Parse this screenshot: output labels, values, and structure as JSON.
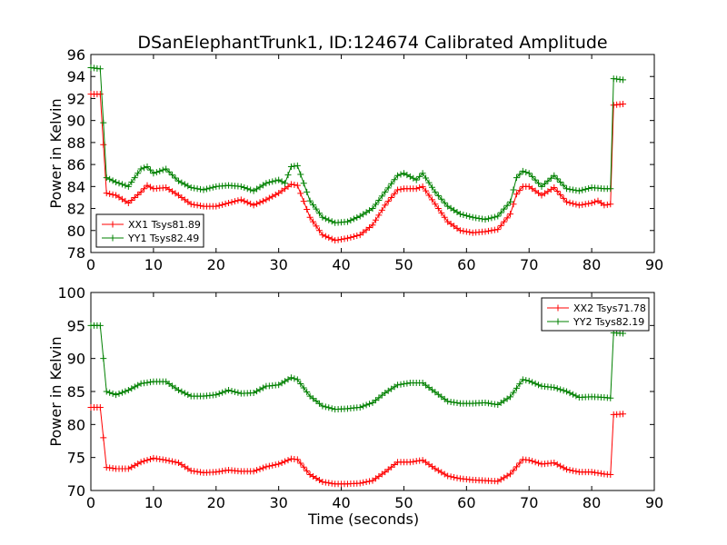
{
  "title": "DSanElephantTrunk1, ID:124674 Calibrated Amplitude",
  "chart_data": [
    {
      "type": "line",
      "xlabel": "",
      "ylabel": "Power in Kelvin",
      "xlim": [
        0,
        90
      ],
      "ylim": [
        78,
        96
      ],
      "xticks": [
        0,
        10,
        20,
        30,
        40,
        50,
        60,
        70,
        80,
        90
      ],
      "yticks": [
        78,
        80,
        82,
        84,
        86,
        88,
        90,
        92,
        94,
        96
      ],
      "legend_position": "lower-left",
      "series": [
        {
          "name": "XX1 Tsys81.89",
          "color": "#ff0000",
          "marker": "+",
          "points": [
            [
              0,
              92.4
            ],
            [
              1.5,
              92.4
            ],
            [
              2,
              87.8
            ],
            [
              2.5,
              83.4
            ],
            [
              4,
              83.2
            ],
            [
              6,
              82.5
            ],
            [
              8,
              83.5
            ],
            [
              9,
              84.1
            ],
            [
              10,
              83.8
            ],
            [
              12,
              83.9
            ],
            [
              14,
              83.2
            ],
            [
              16,
              82.4
            ],
            [
              18,
              82.2
            ],
            [
              20,
              82.2
            ],
            [
              22,
              82.5
            ],
            [
              24,
              82.8
            ],
            [
              26,
              82.3
            ],
            [
              28,
              82.8
            ],
            [
              30,
              83.4
            ],
            [
              32,
              84.2
            ],
            [
              33,
              84.1
            ],
            [
              35,
              81.2
            ],
            [
              37,
              79.6
            ],
            [
              39,
              79.1
            ],
            [
              41,
              79.3
            ],
            [
              43,
              79.6
            ],
            [
              45,
              80.5
            ],
            [
              47,
              82.3
            ],
            [
              49,
              83.7
            ],
            [
              50,
              83.8
            ],
            [
              52,
              83.8
            ],
            [
              53,
              84.0
            ],
            [
              55,
              82.4
            ],
            [
              57,
              80.8
            ],
            [
              59,
              80.0
            ],
            [
              61,
              79.8
            ],
            [
              63,
              79.9
            ],
            [
              65,
              80.1
            ],
            [
              67,
              81.5
            ],
            [
              68,
              83.3
            ],
            [
              69,
              84.0
            ],
            [
              70,
              84.0
            ],
            [
              72,
              83.2
            ],
            [
              74,
              83.9
            ],
            [
              76,
              82.6
            ],
            [
              78,
              82.3
            ],
            [
              80,
              82.5
            ],
            [
              81,
              82.7
            ],
            [
              82,
              82.3
            ],
            [
              83,
              82.4
            ],
            [
              83.5,
              91.4
            ],
            [
              85,
              91.5
            ]
          ]
        },
        {
          "name": "YY1 Tsys82.49",
          "color": "#008000",
          "marker": "+",
          "points": [
            [
              0,
              94.8
            ],
            [
              1.5,
              94.7
            ],
            [
              2,
              89.8
            ],
            [
              2.5,
              84.8
            ],
            [
              4,
              84.4
            ],
            [
              6,
              84.0
            ],
            [
              8,
              85.6
            ],
            [
              9,
              85.8
            ],
            [
              10,
              85.2
            ],
            [
              12,
              85.6
            ],
            [
              14,
              84.5
            ],
            [
              16,
              83.9
            ],
            [
              18,
              83.7
            ],
            [
              20,
              84.0
            ],
            [
              22,
              84.1
            ],
            [
              24,
              84.0
            ],
            [
              26,
              83.6
            ],
            [
              28,
              84.3
            ],
            [
              30,
              84.6
            ],
            [
              31,
              84.3
            ],
            [
              32,
              85.8
            ],
            [
              33,
              85.9
            ],
            [
              35,
              82.7
            ],
            [
              37,
              81.2
            ],
            [
              39,
              80.7
            ],
            [
              41,
              80.8
            ],
            [
              43,
              81.3
            ],
            [
              45,
              82.0
            ],
            [
              47,
              83.5
            ],
            [
              49,
              85.0
            ],
            [
              50,
              85.2
            ],
            [
              52,
              84.6
            ],
            [
              53,
              85.2
            ],
            [
              55,
              83.5
            ],
            [
              57,
              82.2
            ],
            [
              59,
              81.5
            ],
            [
              61,
              81.2
            ],
            [
              63,
              81.0
            ],
            [
              65,
              81.3
            ],
            [
              67,
              82.6
            ],
            [
              68,
              84.8
            ],
            [
              69,
              85.4
            ],
            [
              70,
              85.2
            ],
            [
              72,
              84.0
            ],
            [
              74,
              85.0
            ],
            [
              76,
              83.8
            ],
            [
              78,
              83.6
            ],
            [
              80,
              83.9
            ],
            [
              82,
              83.8
            ],
            [
              83,
              83.8
            ],
            [
              83.5,
              93.8
            ],
            [
              85,
              93.7
            ]
          ]
        }
      ]
    },
    {
      "type": "line",
      "xlabel": "Time (seconds)",
      "ylabel": "Power in Kelvin",
      "xlim": [
        0,
        90
      ],
      "ylim": [
        70,
        100
      ],
      "xticks": [
        0,
        10,
        20,
        30,
        40,
        50,
        60,
        70,
        80,
        90
      ],
      "yticks": [
        70,
        75,
        80,
        85,
        90,
        95,
        100
      ],
      "legend_position": "upper-right",
      "series": [
        {
          "name": "XX2 Tsys71.78",
          "color": "#ff0000",
          "marker": "+",
          "points": [
            [
              0,
              82.6
            ],
            [
              1.5,
              82.6
            ],
            [
              2,
              78.0
            ],
            [
              2.5,
              73.5
            ],
            [
              4,
              73.3
            ],
            [
              6,
              73.3
            ],
            [
              8,
              74.3
            ],
            [
              10,
              74.9
            ],
            [
              12,
              74.6
            ],
            [
              14,
              74.2
            ],
            [
              16,
              73.0
            ],
            [
              18,
              72.7
            ],
            [
              20,
              72.8
            ],
            [
              22,
              73.1
            ],
            [
              24,
              72.9
            ],
            [
              26,
              72.9
            ],
            [
              28,
              73.6
            ],
            [
              30,
              74.0
            ],
            [
              32,
              74.8
            ],
            [
              33,
              74.7
            ],
            [
              35,
              72.4
            ],
            [
              37,
              71.3
            ],
            [
              39,
              71.0
            ],
            [
              41,
              71.0
            ],
            [
              43,
              71.1
            ],
            [
              45,
              71.5
            ],
            [
              47,
              72.8
            ],
            [
              49,
              74.3
            ],
            [
              51,
              74.3
            ],
            [
              53,
              74.6
            ],
            [
              55,
              73.3
            ],
            [
              57,
              72.2
            ],
            [
              59,
              71.8
            ],
            [
              61,
              71.6
            ],
            [
              63,
              71.5
            ],
            [
              65,
              71.4
            ],
            [
              67,
              72.5
            ],
            [
              69,
              74.7
            ],
            [
              70,
              74.6
            ],
            [
              72,
              74.0
            ],
            [
              74,
              74.2
            ],
            [
              76,
              73.2
            ],
            [
              78,
              72.8
            ],
            [
              80,
              72.8
            ],
            [
              82,
              72.5
            ],
            [
              83,
              72.4
            ],
            [
              83.5,
              81.5
            ],
            [
              85,
              81.6
            ]
          ]
        },
        {
          "name": "YY2 Tsys82.19",
          "color": "#008000",
          "marker": "+",
          "points": [
            [
              0,
              95.0
            ],
            [
              1.5,
              95.0
            ],
            [
              2,
              90.0
            ],
            [
              2.5,
              85.0
            ],
            [
              4,
              84.5
            ],
            [
              6,
              85.2
            ],
            [
              8,
              86.2
            ],
            [
              10,
              86.5
            ],
            [
              12,
              86.5
            ],
            [
              14,
              85.2
            ],
            [
              16,
              84.3
            ],
            [
              18,
              84.3
            ],
            [
              20,
              84.5
            ],
            [
              22,
              85.2
            ],
            [
              24,
              84.7
            ],
            [
              26,
              84.8
            ],
            [
              28,
              85.8
            ],
            [
              30,
              86.0
            ],
            [
              32,
              87.1
            ],
            [
              33,
              86.8
            ],
            [
              35,
              84.3
            ],
            [
              37,
              82.8
            ],
            [
              39,
              82.3
            ],
            [
              41,
              82.4
            ],
            [
              43,
              82.6
            ],
            [
              45,
              83.3
            ],
            [
              47,
              84.8
            ],
            [
              49,
              86.0
            ],
            [
              51,
              86.3
            ],
            [
              53,
              86.3
            ],
            [
              55,
              84.9
            ],
            [
              57,
              83.5
            ],
            [
              59,
              83.2
            ],
            [
              61,
              83.2
            ],
            [
              63,
              83.3
            ],
            [
              65,
              83.0
            ],
            [
              67,
              84.2
            ],
            [
              69,
              86.8
            ],
            [
              70,
              86.6
            ],
            [
              72,
              85.8
            ],
            [
              74,
              85.6
            ],
            [
              76,
              85.0
            ],
            [
              78,
              84.1
            ],
            [
              80,
              84.2
            ],
            [
              82,
              84.1
            ],
            [
              83,
              84.0
            ],
            [
              83.5,
              93.9
            ],
            [
              85,
              93.8
            ]
          ]
        }
      ]
    }
  ]
}
